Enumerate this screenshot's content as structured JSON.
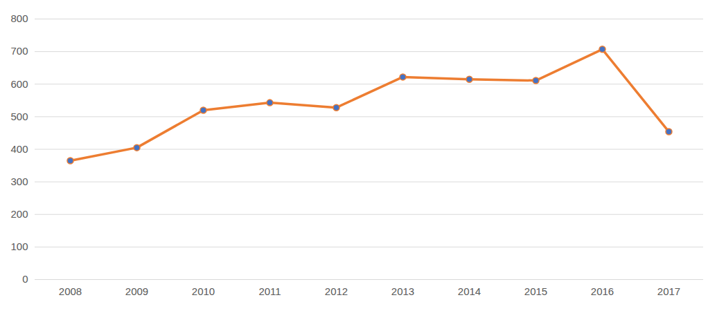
{
  "chart_data": {
    "type": "line",
    "categories": [
      "2008",
      "2009",
      "2010",
      "2011",
      "2012",
      "2013",
      "2014",
      "2015",
      "2016",
      "2017"
    ],
    "values": [
      365,
      405,
      520,
      543,
      528,
      622,
      615,
      611,
      707,
      454
    ],
    "color": "#ed7d31",
    "marker": "circle",
    "line_style": "solid",
    "ylim": [
      0,
      800
    ],
    "yticks": [
      0,
      100,
      200,
      300,
      400,
      500,
      600,
      700,
      800
    ],
    "grid": true
  }
}
